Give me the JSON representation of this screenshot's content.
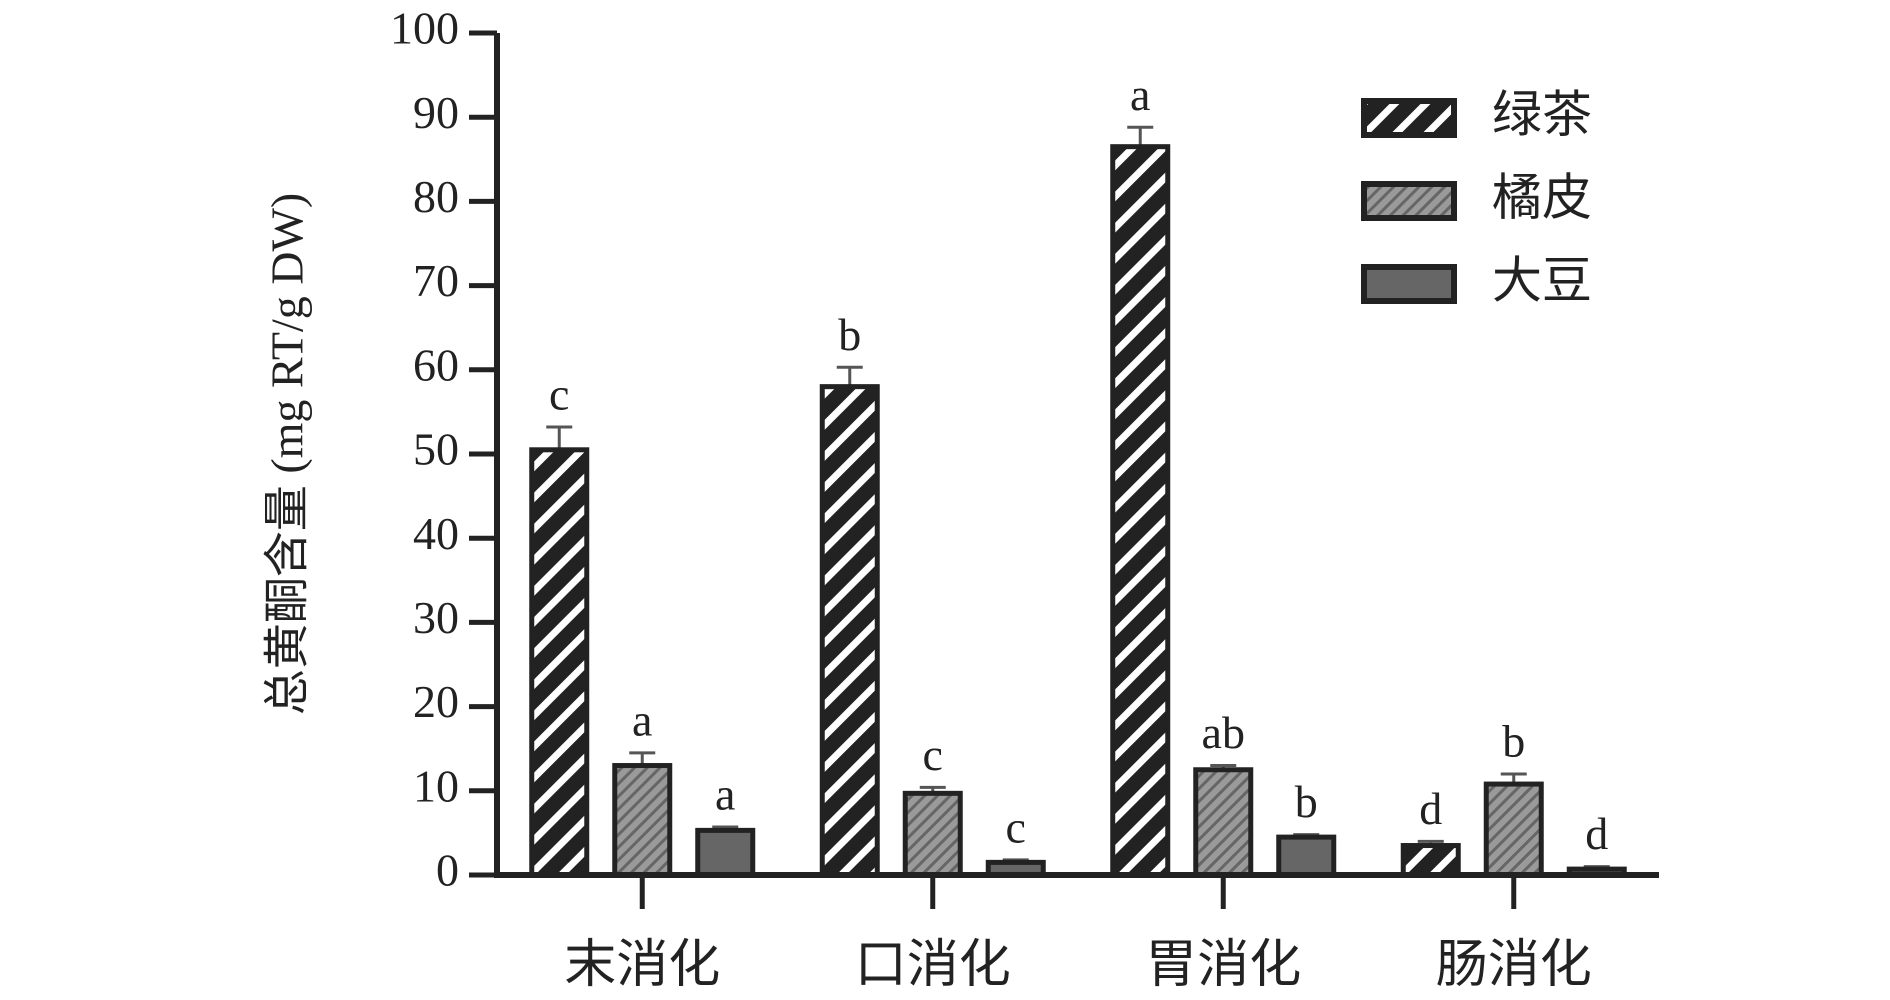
{
  "chart_data": {
    "type": "bar",
    "y_label": "总黄酮含量 (mg RT/g DW)",
    "categories": [
      "末消化",
      "口消化",
      "胃消化",
      "肠消化"
    ],
    "series": [
      {
        "name": "绿茶",
        "color": "#222222",
        "values": [
          50.5,
          58,
          86.5,
          3.5
        ],
        "errors": [
          2.7,
          2.3,
          2.3,
          0.5
        ],
        "letters": [
          "c",
          "b",
          "a",
          "d"
        ]
      },
      {
        "name": "橘皮",
        "color": "#8a8a8a",
        "values": [
          13,
          9.7,
          12.5,
          10.8
        ],
        "errors": [
          1.5,
          0.7,
          0.5,
          1.2
        ],
        "letters": [
          "a",
          "c",
          "ab",
          "b"
        ]
      },
      {
        "name": "大豆",
        "color": "#666666",
        "values": [
          5.3,
          1.5,
          4.5,
          0.7
        ],
        "errors": [
          0.4,
          0.3,
          0.3,
          0.3
        ],
        "letters": [
          "a",
          "c",
          "b",
          "d"
        ]
      }
    ],
    "ylim": [
      0,
      100
    ],
    "yticks": [
      0,
      10,
      20,
      30,
      40,
      50,
      60,
      70,
      80,
      90,
      100
    ]
  }
}
